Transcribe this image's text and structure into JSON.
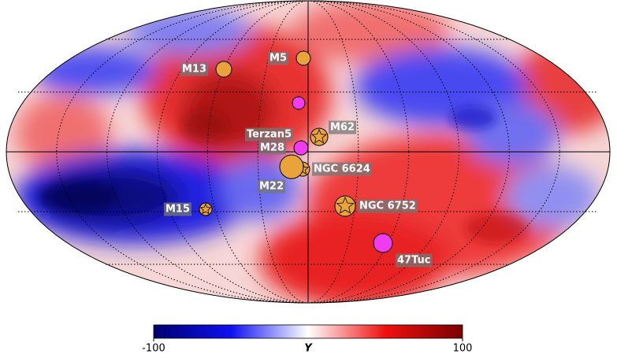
{
  "chart_data": {
    "type": "sky-map",
    "sources": [
      {
        "label": "M13",
        "marker": "circle",
        "color": "#e8a33a"
      },
      {
        "label": "M5",
        "marker": "circle",
        "color": "#e8a33a"
      },
      {
        "label": null,
        "marker": "circle",
        "color": "#f03cf0"
      },
      {
        "label": "M62",
        "marker": "star",
        "color": "#e8a33a"
      },
      {
        "label": "Terzan5",
        "marker": "circle",
        "color": "#e8a33a"
      },
      {
        "label": "M28",
        "marker": "circle",
        "color": "#f03cf0"
      },
      {
        "label": "NGC 6624",
        "marker": "star",
        "color": "#e8a33a"
      },
      {
        "label": "M22",
        "marker": "circle",
        "color": "#e8a33a"
      },
      {
        "label": "NGC 6752",
        "marker": "star",
        "color": "#e8a33a"
      },
      {
        "label": "M15",
        "marker": "star",
        "color": "#e8a33a"
      },
      {
        "label": "47Tuc",
        "marker": "circle",
        "color": "#f03cf0"
      }
    ],
    "colorbar": {
      "label": "Y",
      "clim": [
        -100,
        100
      ],
      "ticks": [
        -100,
        100
      ]
    }
  }
}
